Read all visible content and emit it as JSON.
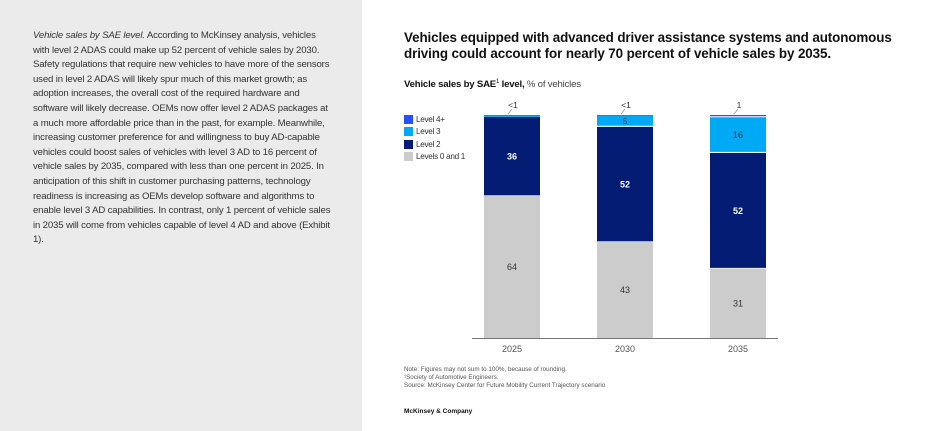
{
  "article": {
    "lead_italic": "Vehicle sales by SAE level.",
    "body": " According to McKinsey analysis, vehicles with level 2 ADAS could make up 52 percent of vehicle sales by 2030. Safety regulations that require new vehicles to have more of the sensors used in level 2 ADAS will likely spur much of this market growth; as adoption increases, the overall cost of the required hardware and software will likely decrease. OEMs now offer level 2 ADAS packages at a much more affordable price than in the past, for example. Meanwhile, increasing customer preference for and willingness to buy AD-capable vehicles could boost sales of vehicles with level 3 AD to 16 percent of vehicle sales by 2035, compared with less than one percent in 2025. In anticipation of this shift in customer purchasing patterns, technology readiness is increasing as OEMs develop software and algorithms to enable level 3 AD capabilities. In contrast, only 1 percent of vehicle sales in 2035 will come from vehicles capable of level 4 AD and above (Exhibit 1)."
  },
  "exhibit": {
    "title": "Vehicles equipped with advanced driver assistance systems and autonomous driving could account for nearly 70 percent of vehicle sales by 2035.",
    "subtitle_bold": "Vehicle sales by SAE",
    "subtitle_sup": "1",
    "subtitle_bold2": " level,",
    "subtitle_unit": " % of vehicles",
    "notes": [
      "Note: Figures may not sum to 100%, because of rounding.",
      "¹Society of Automotive Engineers.",
      "Source: McKinsey Center for Future Mobility Current Trajectory scenario"
    ],
    "brand": "McKinsey & Company"
  },
  "chart_data": {
    "type": "bar",
    "stacked": true,
    "title": "Vehicle sales by SAE¹ level, % of vehicles",
    "categories": [
      "2025",
      "2030",
      "2035"
    ],
    "series": [
      {
        "name": "Levels 0 and 1",
        "color": "#cccccc",
        "values": [
          64,
          43,
          31
        ],
        "labels": [
          "64",
          "43",
          "31"
        ],
        "label_color": "#333333"
      },
      {
        "name": "Level 2",
        "color": "#051c75",
        "values": [
          36,
          52,
          52
        ],
        "labels": [
          "36",
          "52",
          "52"
        ],
        "label_color": "#ffffff"
      },
      {
        "name": "Level 3",
        "color": "#00a9f4",
        "values": [
          0.5,
          5,
          16
        ],
        "labels": [
          "",
          "5",
          "16"
        ],
        "label_color": "#333333"
      },
      {
        "name": "Level 4+",
        "color": "#2251ff",
        "values": [
          0.3,
          0.3,
          1
        ],
        "labels": [
          "<1",
          "<1",
          "1"
        ],
        "label_color": "#333333",
        "label_position": "above-callout"
      }
    ],
    "legend_order": [
      "Level 4+",
      "Level 3",
      "Level 2",
      "Levels 0 and 1"
    ],
    "legend_position": "top-left",
    "xlabel": "",
    "ylabel": "",
    "ylim": [
      0,
      100
    ],
    "grid": false
  }
}
